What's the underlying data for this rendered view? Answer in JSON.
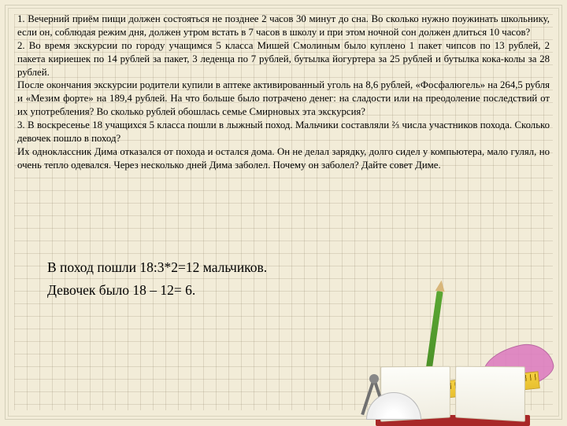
{
  "problems": {
    "p1": "1. Вечерний приём пищи должен состояться не позднее 2 часов 30 минут до сна. Во сколько нужно поужинать школьнику, если он, соблюдая режим дня, должен утром встать в 7 часов в школу и при этом ночной сон должен длиться 10 часов?",
    "p2_a": "2. Во время экскурсии по городу учащимся 5 класса Мишей Смолиным было куплено 1 пакет чипсов по 13 рублей, 2 пакета кириешек по 14 рублей за пакет, 3 леденца по 7 рублей, бутылка йогуртера за 25 рублей и бутылка кока-колы за 28 рублей.",
    "p2_b": "После окончания экскурсии родители купили в аптеке активированный уголь на 8,6 рублей, «Фосфалюгель» на 264,5 рубля и «Мезим форте» на 189,4 рублей. На что больше было потрачено денег: на сладости или на преодоление последствий от их употребления? Во сколько рублей обошлась семье Смирновых эта экскурсия?",
    "p3_a": "3. В воскресенье 18 учащихся 5 класса пошли в лыжный поход. Мальчики составляли ⅔ числа участников похода. Сколько девочек пошло в поход?",
    "p3_b": "Их одноклассник Дима отказался от похода и остался дома. Он не делал зарядку, долго сидел у компьютера, мало гулял, но очень тепло одевался. Через несколько дней Дима заболел. Почему он заболел? Дайте совет Диме."
  },
  "solution": {
    "line1": "В поход пошли 18:3*2=12 мальчиков.",
    "line2": "Девочек было 18 – 12= 6."
  },
  "colors": {
    "background": "#f2ecd8",
    "text": "#000000",
    "grid": "rgba(140,130,100,0.22)"
  }
}
